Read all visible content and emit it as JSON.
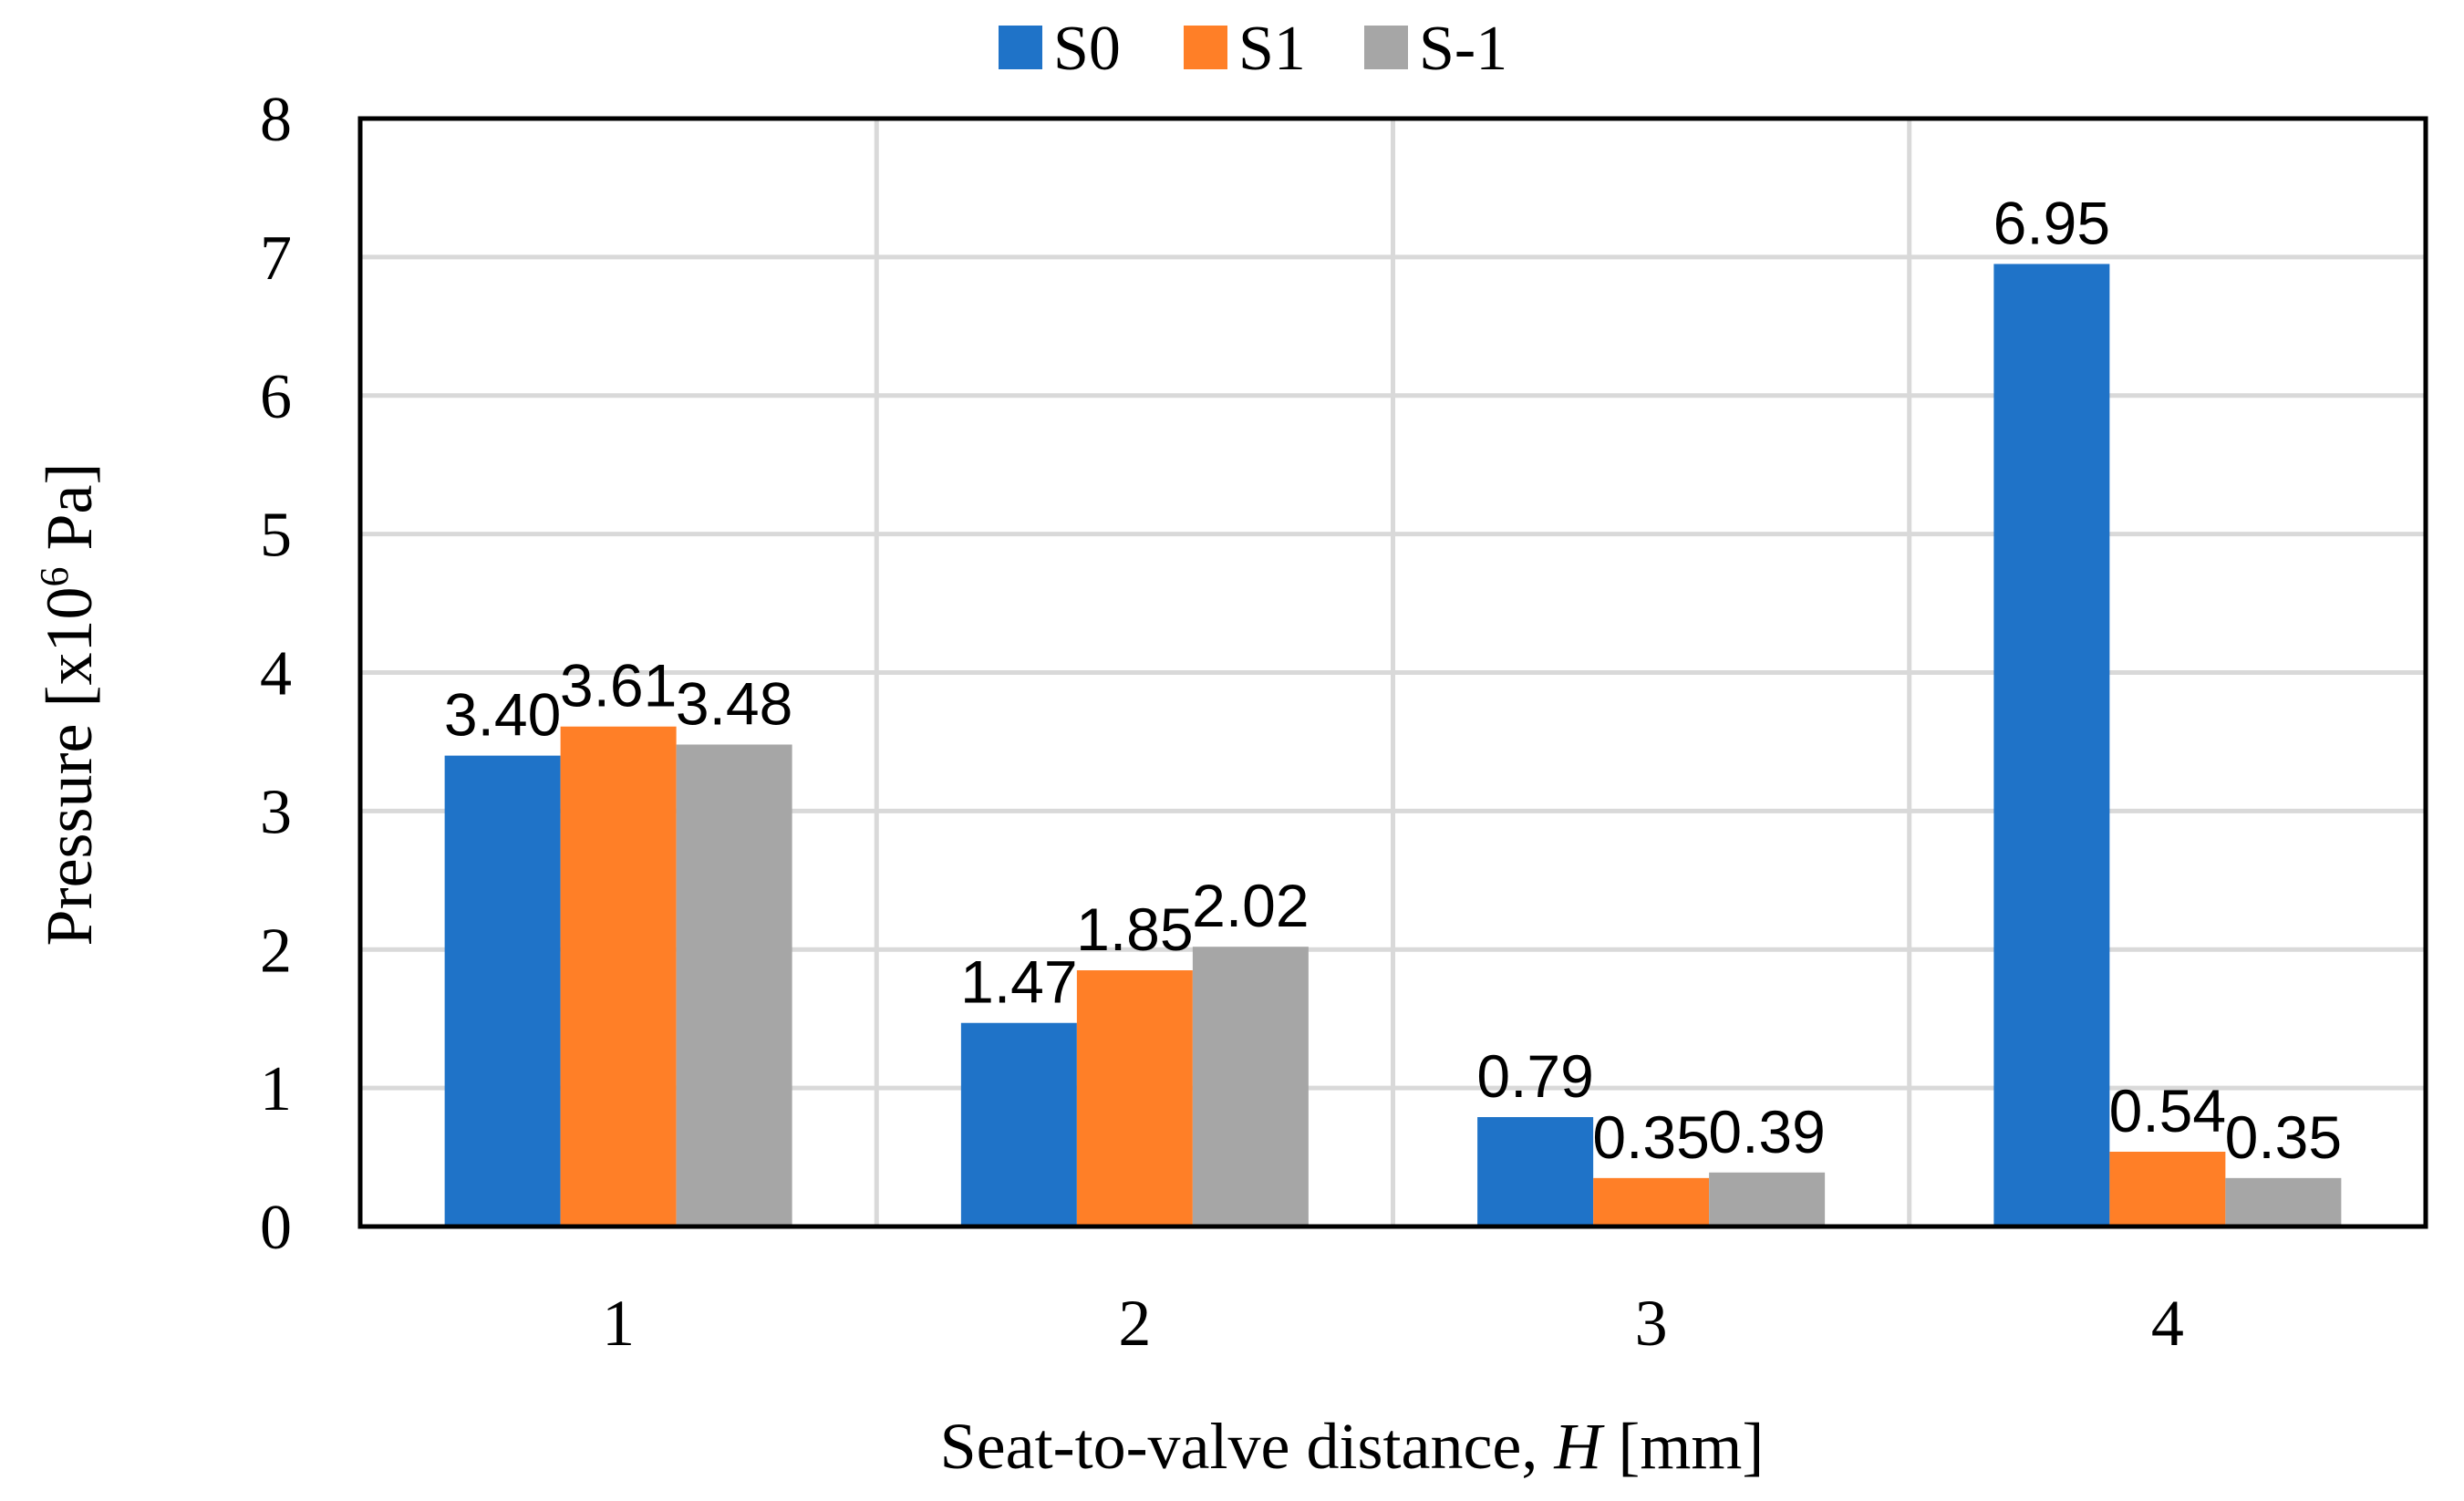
{
  "chart_data": {
    "type": "bar",
    "title": "",
    "categories": [
      "1",
      "2",
      "3",
      "4"
    ],
    "series": [
      {
        "name": "S0",
        "color": "#1f73c8",
        "values": [
          3.4,
          1.47,
          0.79,
          6.95
        ],
        "labels": [
          "3.40",
          "1.47",
          "0.79",
          "6.95"
        ]
      },
      {
        "name": "S1",
        "color": "#ff7f27",
        "values": [
          3.61,
          1.85,
          0.35,
          0.54
        ],
        "labels": [
          "3.61",
          "1.85",
          "0.35",
          "0.54"
        ]
      },
      {
        "name": "S-1",
        "color": "#a6a6a6",
        "values": [
          3.48,
          2.02,
          0.39,
          0.35
        ],
        "labels": [
          "3.48",
          "2.02",
          "0.39",
          "0.35"
        ]
      }
    ],
    "xlabel": {
      "prefix": "Seat-to-valve distance, ",
      "var": "H",
      "suffix": " [mm]"
    },
    "ylabel": {
      "prefix": "Pressure [x10",
      "sup": "6",
      "suffix": " Pa]"
    },
    "ylim": [
      0,
      8
    ],
    "yticks": [
      "0",
      "1",
      "2",
      "3",
      "4",
      "5",
      "6",
      "7",
      "8"
    ],
    "grid": true,
    "legend": "top-center"
  }
}
